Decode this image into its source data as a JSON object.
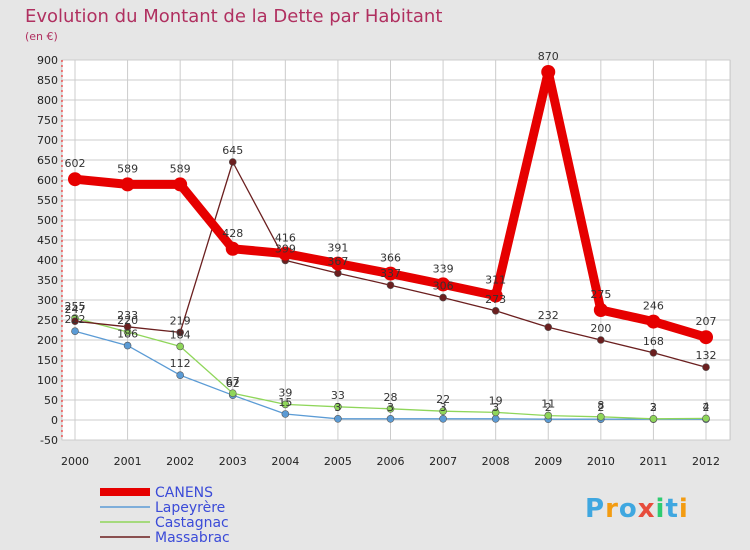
{
  "chart_data": {
    "type": "line",
    "title": "Evolution du Montant de la Dette par Habitant",
    "subtitle": "(en €)",
    "x": [
      "2000",
      "2001",
      "2002",
      "2003",
      "2004",
      "2005",
      "2006",
      "2007",
      "2008",
      "2009",
      "2010",
      "2011",
      "2012"
    ],
    "ylim": [
      -50,
      900
    ],
    "yticks": [
      -50,
      0,
      50,
      100,
      150,
      200,
      250,
      300,
      350,
      400,
      450,
      500,
      550,
      600,
      650,
      700,
      750,
      800,
      850,
      900
    ],
    "grid": true,
    "legend_position": "bottom-left",
    "series": [
      {
        "name": "CANENS",
        "color": "#e60000",
        "values": [
          602,
          589,
          589,
          428,
          416,
          391,
          366,
          339,
          311,
          870,
          275,
          246,
          207
        ],
        "labels": [
          "602",
          "589",
          "589",
          "428",
          "416",
          "391",
          "366",
          "339",
          "311",
          "870",
          "275",
          "246",
          "207"
        ]
      },
      {
        "name": "Lapeyrère",
        "color": "#5b9bd5",
        "values": [
          222,
          186,
          112,
          62,
          15,
          3,
          3,
          3,
          3,
          2,
          2,
          2,
          2
        ],
        "labels": [
          "222",
          "186",
          "112",
          "62",
          "15",
          "3",
          "3",
          "3",
          "3",
          "2",
          "2",
          "2",
          "2"
        ]
      },
      {
        "name": "Castagnac",
        "color": "#8fd65a",
        "values": [
          255,
          220,
          184,
          67,
          39,
          33,
          28,
          22,
          19,
          11,
          8,
          3,
          4
        ],
        "labels": [
          "255",
          "220",
          "184",
          "67",
          "39",
          "33",
          "28",
          "22",
          "19",
          "11",
          "8",
          "3",
          "4"
        ]
      },
      {
        "name": "Massabrac",
        "color": "#6b1f1f",
        "values": [
          247,
          233,
          219,
          645,
          399,
          367,
          337,
          306,
          273,
          232,
          200,
          168,
          132
        ],
        "labels": [
          "247",
          "233",
          "219",
          "645",
          "399",
          "367",
          "337",
          "306",
          "273",
          "232",
          "200",
          "168",
          "132"
        ]
      }
    ]
  },
  "logo": {
    "text": "Proxiti",
    "colors": [
      "#3fa7e0",
      "#f39c12",
      "#3fa7e0",
      "#e74c3c",
      "#2ecc71",
      "#3fa7e0",
      "#f39c12"
    ]
  },
  "colors": {
    "title": "#b03060",
    "legend_text": "#3b4bd8",
    "plot_bg": "#ffffff",
    "grid": "#cccccc"
  }
}
